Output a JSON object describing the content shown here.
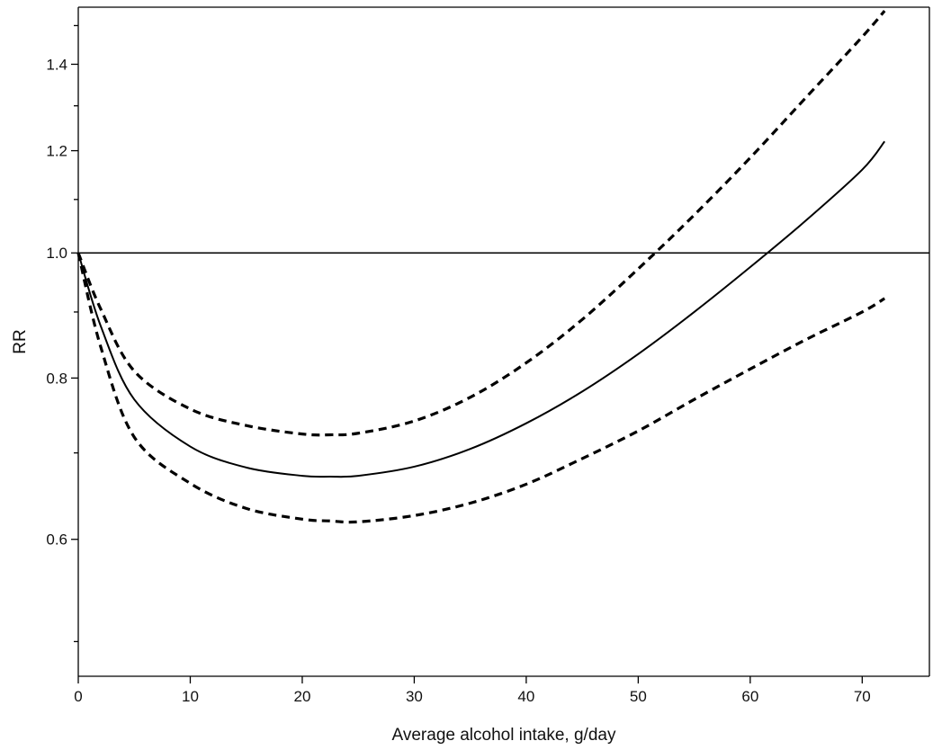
{
  "chart_data": {
    "type": "line",
    "title": "",
    "xlabel": "Average alcohol intake, g/day",
    "ylabel": "RR",
    "y_scale": "log",
    "xlim": [
      0,
      76
    ],
    "ylim": [
      0.47,
      1.55
    ],
    "x_ticks": [
      0,
      10,
      20,
      30,
      40,
      50,
      60,
      70
    ],
    "x_tick_labels": [
      "0",
      "10",
      "20",
      "30",
      "40",
      "50",
      "60",
      "70"
    ],
    "y_major_ticks": [
      0.6,
      0.8,
      1.0,
      1.2,
      1.4
    ],
    "y_tick_labels": [
      "0.6",
      "0.8",
      "1.0",
      "1.2",
      "1.4"
    ],
    "y_minor_ticks": [
      0.5,
      0.7,
      0.9,
      1.1,
      1.3,
      1.5
    ],
    "reference_line": {
      "y": 1.0
    },
    "grid": false,
    "legend": "none",
    "x": [
      0,
      2,
      5,
      10,
      15,
      20,
      22.5,
      25,
      30,
      35,
      40,
      45,
      50,
      55,
      60,
      65,
      70,
      72
    ],
    "series": [
      {
        "style": "solid",
        "values": [
          1.0,
          0.878,
          0.77,
          0.708,
          0.682,
          0.672,
          0.671,
          0.672,
          0.683,
          0.705,
          0.738,
          0.781,
          0.835,
          0.9,
          0.975,
          1.06,
          1.16,
          1.22
        ]
      },
      {
        "style": "dashed",
        "values": [
          1.0,
          0.905,
          0.81,
          0.757,
          0.735,
          0.724,
          0.723,
          0.725,
          0.741,
          0.773,
          0.822,
          0.888,
          0.972,
          1.07,
          1.185,
          1.32,
          1.47,
          1.54
        ]
      },
      {
        "style": "dashed",
        "values": [
          1.0,
          0.846,
          0.72,
          0.663,
          0.634,
          0.622,
          0.62,
          0.619,
          0.626,
          0.64,
          0.662,
          0.693,
          0.728,
          0.77,
          0.813,
          0.857,
          0.9,
          0.922
        ]
      }
    ]
  }
}
